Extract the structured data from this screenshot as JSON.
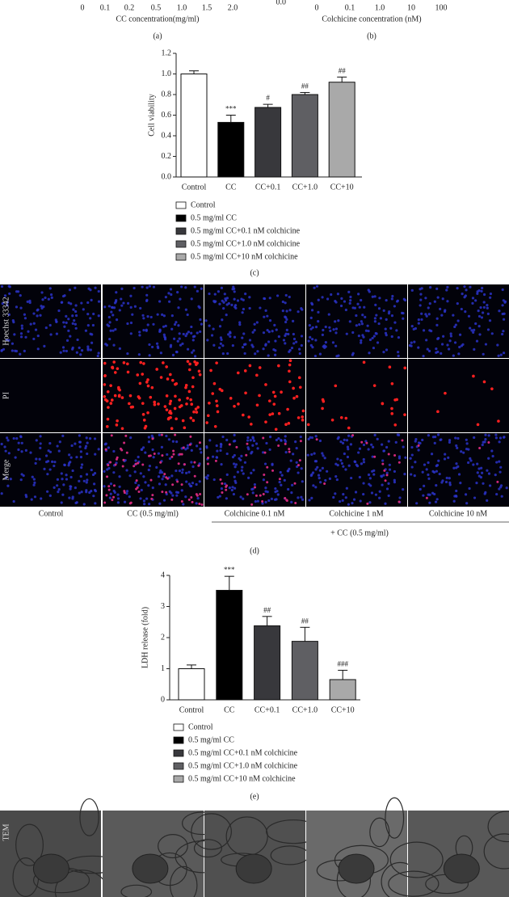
{
  "panel_a": {
    "x_ticks": [
      "0",
      "0.1",
      "0.2",
      "0.5",
      "1.0",
      "1.5",
      "2.0"
    ],
    "x_label": "CC concentration(mg/ml)",
    "caption": "(a)"
  },
  "panel_b": {
    "y_tick": "0.0",
    "x_ticks": [
      "0",
      "0.1",
      "1.0",
      "10",
      "100"
    ],
    "x_label": "Colchicine concentration (nM)",
    "caption": "(b)"
  },
  "chart_data": [
    {
      "type": "bar",
      "y_label": "Cell viability",
      "caption": "(c)",
      "categories": [
        "Control",
        "CC",
        "CC+0.1",
        "CC+1.0",
        "CC+10"
      ],
      "values": [
        1.0,
        0.53,
        0.675,
        0.8,
        0.92
      ],
      "errors": [
        0.03,
        0.07,
        0.03,
        0.02,
        0.05
      ],
      "annotations": [
        null,
        "***",
        "#",
        "##",
        "##"
      ],
      "colors": [
        "#ffffff",
        "#000000",
        "#38383c",
        "#5f5f63",
        "#a9a9a9"
      ],
      "legend": [
        "Control",
        "0.5 mg/ml CC",
        "0.5 mg/ml CC+0.1 nM colchicine",
        "0.5 mg/ml CC+1.0 nM colchicine",
        "0.5 mg/ml CC+10 nM colchicine"
      ],
      "ylim": [
        0,
        1.2
      ],
      "yticks": [
        {
          "value": 0,
          "label": "0.0"
        },
        {
          "value": 0.2,
          "label": "0.2"
        },
        {
          "value": 0.4,
          "label": "0.4"
        },
        {
          "value": 0.6,
          "label": "0.6"
        },
        {
          "value": 0.8,
          "label": "0.8"
        },
        {
          "value": 1.0,
          "label": "1.0"
        },
        {
          "value": 1.2,
          "label": "1.2"
        }
      ]
    },
    {
      "type": "bar",
      "y_label": "LDH release (fold)",
      "caption": "(e)",
      "categories": [
        "Control",
        "CC",
        "CC+0.1",
        "CC+1.0",
        "CC+10"
      ],
      "values": [
        1.0,
        3.52,
        2.38,
        1.88,
        0.65
      ],
      "errors": [
        0.12,
        0.45,
        0.3,
        0.45,
        0.3
      ],
      "annotations": [
        null,
        "***",
        "##",
        "##",
        "###"
      ],
      "colors": [
        "#ffffff",
        "#000000",
        "#38383c",
        "#5f5f63",
        "#a9a9a9"
      ],
      "legend": [
        "Control",
        "0.5 mg/ml CC",
        "0.5 mg/ml CC+0.1 nM colchicine",
        "0.5 mg/ml CC+1.0 nM colchicine",
        "0.5 mg/ml CC+10 nM colchicine"
      ],
      "ylim": [
        0,
        4
      ],
      "yticks": [
        0,
        1,
        2,
        3,
        4
      ]
    }
  ],
  "panel_d": {
    "row_labels": [
      "Hoechst 33342",
      "PI",
      "Merge"
    ],
    "column_labels": [
      "Control",
      "CC (0.5 mg/ml)",
      "Colchicine 0.1 nM",
      "Colchicine 1 nM",
      "Colchicine 10 nM"
    ],
    "bracket_label": "+ CC (0.5 mg/ml)",
    "caption": "(d)"
  },
  "panel_f": {
    "row_label": "TEM"
  }
}
